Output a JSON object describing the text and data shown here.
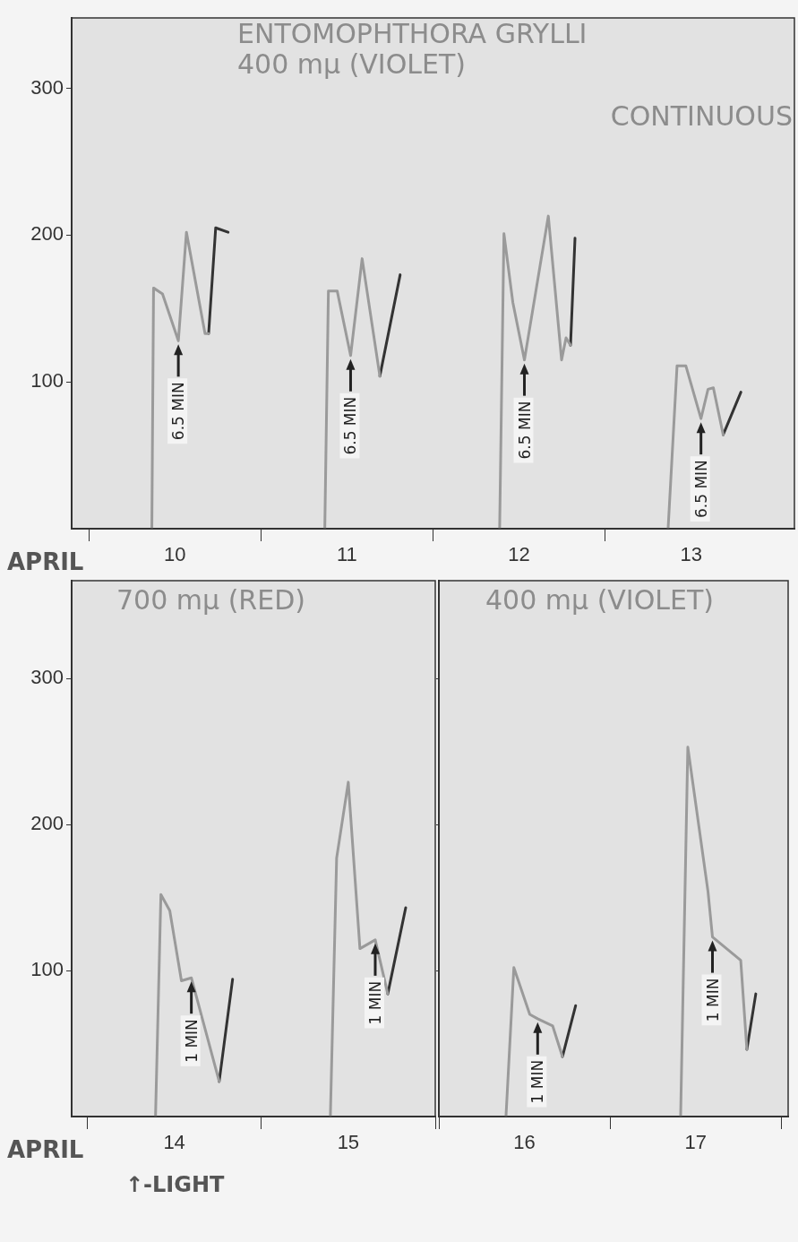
{
  "chart_data": [
    {
      "type": "line",
      "title": "ENTOMOPHTHORA GRYLLI",
      "subtitle": "400 mμ (VIOLET)",
      "xlabel": "APRIL",
      "xlim": [
        9.4,
        13.6
      ],
      "ylim": [
        0,
        348
      ],
      "xticks": [
        {
          "value": 9.5,
          "label": null
        },
        {
          "value": 10,
          "label": "10"
        },
        {
          "value": 10.5,
          "label": null
        },
        {
          "value": 11,
          "label": "11"
        },
        {
          "value": 11.5,
          "label": null
        },
        {
          "value": 12,
          "label": "12"
        },
        {
          "value": 12.5,
          "label": null
        },
        {
          "value": 13,
          "label": "13"
        }
      ],
      "yticks": [
        100,
        200,
        300
      ],
      "grid": false,
      "legend": false,
      "marker": "none",
      "series": [
        {
          "color": "#9a9a9a",
          "x": [
            9.866,
            9.876,
            9.928,
            10.02,
            10.067,
            10.175,
            10.196
          ],
          "values": [
            0,
            164,
            160,
            128,
            202,
            133,
            133
          ]
        },
        {
          "color": "#333333",
          "x": [
            10.196,
            10.237,
            10.309
          ],
          "values": [
            133,
            205,
            202
          ]
        },
        {
          "color": "#9a9a9a",
          "x": [
            10.871,
            10.892,
            10.943,
            11.021,
            11.088,
            11.191
          ],
          "values": [
            0,
            162,
            162,
            118,
            184,
            104
          ]
        },
        {
          "color": "#333333",
          "x": [
            11.191,
            11.309
          ],
          "values": [
            104,
            173
          ]
        },
        {
          "color": "#9a9a9a",
          "x": [
            11.887,
            11.912,
            11.964,
            12.031,
            12.17,
            12.247,
            12.273,
            12.299
          ],
          "values": [
            0,
            201,
            154,
            115,
            213,
            115,
            130,
            125
          ]
        },
        {
          "color": "#333333",
          "x": [
            12.299,
            12.325
          ],
          "values": [
            125,
            198
          ]
        },
        {
          "color": "#9a9a9a",
          "x": [
            12.866,
            12.918,
            12.969,
            13.057,
            13.098,
            13.129,
            13.186
          ],
          "values": [
            0,
            111,
            111,
            75,
            95,
            96,
            64
          ]
        },
        {
          "color": "#333333",
          "x": [
            13.186,
            13.289
          ],
          "values": [
            64,
            93
          ]
        }
      ],
      "annotations": [
        "CONTINUOUS",
        {
          "text": "6.5 MIN",
          "x": 10.02,
          "y": 128
        },
        {
          "text": "6.5 MIN",
          "x": 11.021,
          "y": 118
        },
        {
          "text": "6.5 MIN",
          "x": 12.031,
          "y": 115
        },
        {
          "text": "6.5 MIN",
          "x": 13.057,
          "y": 75
        }
      ]
    },
    {
      "type": "line",
      "title": "700 mμ (RED)",
      "xlabel": "APRIL",
      "xlim": [
        13.41,
        15.5
      ],
      "ylim": [
        0,
        367
      ],
      "xticks": [
        {
          "value": 13.5,
          "label": null
        },
        {
          "value": 14,
          "label": "14"
        },
        {
          "value": 14.5,
          "label": null
        },
        {
          "value": 15,
          "label": "15"
        },
        {
          "value": 15.5,
          "label": null
        }
      ],
      "yticks": [
        100,
        200,
        300
      ],
      "grid": false,
      "legend": false,
      "marker": "none",
      "series": [
        {
          "color": "#9a9a9a",
          "x": [
            13.892,
            13.923,
            13.974,
            14.041,
            14.098,
            14.258
          ],
          "values": [
            0,
            152,
            141,
            93,
            95,
            24
          ]
        },
        {
          "color": "#333333",
          "x": [
            14.258,
            14.335
          ],
          "values": [
            24,
            94
          ]
        },
        {
          "color": "#9a9a9a",
          "x": [
            14.897,
            14.933,
            15.0,
            15.067,
            15.155,
            15.227
          ],
          "values": [
            0,
            177,
            229,
            115,
            121,
            84
          ]
        },
        {
          "color": "#333333",
          "x": [
            15.227,
            15.33
          ],
          "values": [
            84,
            143
          ]
        }
      ],
      "annotations": [
        "↑-LIGHT",
        {
          "text": "1 MIN",
          "x": 14.098,
          "y": 95
        },
        {
          "text": "1 MIN",
          "x": 15.155,
          "y": 121
        }
      ]
    },
    {
      "type": "line",
      "title": "400 mμ (VIOLET)",
      "xlim": [
        15.5,
        17.54
      ],
      "ylim": [
        0,
        367
      ],
      "tick_labels": "x",
      "xticks": [
        {
          "value": 15.5,
          "label": null
        },
        {
          "value": 16,
          "label": "16"
        },
        {
          "value": 16.5,
          "label": null
        },
        {
          "value": 17,
          "label": "17"
        },
        {
          "value": 17.5,
          "label": null
        }
      ],
      "yticks": [
        100,
        200,
        300
      ],
      "grid": false,
      "legend": false,
      "marker": "none",
      "series": [
        {
          "color": "#9a9a9a",
          "x": [
            15.892,
            15.938,
            16.031,
            16.077,
            16.165,
            16.222
          ],
          "values": [
            0,
            102,
            70,
            67,
            62,
            41
          ]
        },
        {
          "color": "#333333",
          "x": [
            16.222,
            16.299
          ],
          "values": [
            41,
            76
          ]
        },
        {
          "color": "#9a9a9a",
          "x": [
            16.912,
            16.954,
            17.072,
            17.098,
            17.263,
            17.299
          ],
          "values": [
            0,
            253,
            154,
            123,
            107,
            46
          ]
        },
        {
          "color": "#333333",
          "x": [
            17.299,
            17.351
          ],
          "values": [
            46,
            84
          ]
        }
      ],
      "annotations": [
        {
          "text": "1 MIN",
          "x": 16.077,
          "y": 67
        },
        {
          "text": "1 MIN",
          "x": 17.098,
          "y": 123
        }
      ]
    }
  ]
}
